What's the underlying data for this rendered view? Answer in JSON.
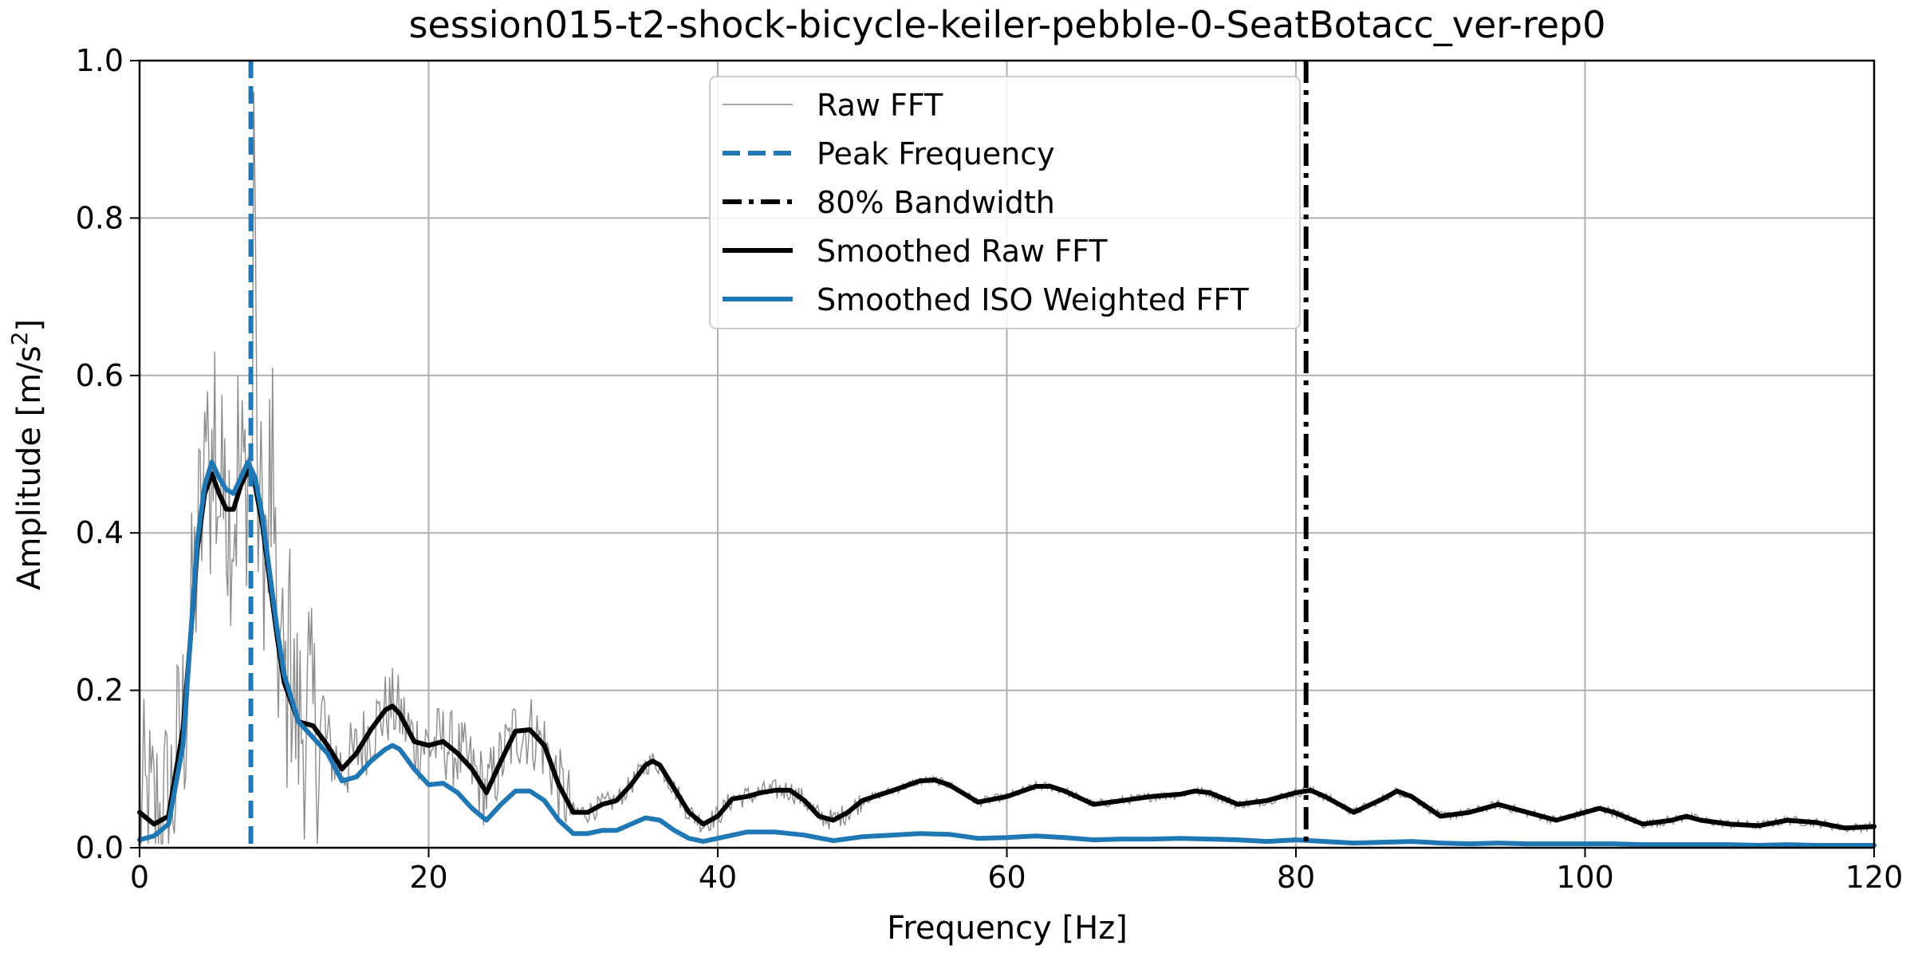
{
  "chart_data": {
    "type": "line",
    "title": "session015-t2-shock-bicycle-keiler-pebble-0-SeatBotacc_ver-rep0",
    "xlabel": "Frequency [Hz]",
    "ylabel_main": "Amplitude [m/s",
    "ylabel_sup": "2",
    "ylabel_close": "]",
    "xlim": [
      0,
      120
    ],
    "ylim": [
      0,
      1.0
    ],
    "x_ticks": [
      0,
      20,
      40,
      60,
      80,
      100,
      120
    ],
    "x_tick_labels": [
      "0",
      "20",
      "40",
      "60",
      "80",
      "100",
      "120"
    ],
    "y_ticks": [
      0,
      0.2,
      0.4,
      0.6,
      0.8,
      1.0
    ],
    "y_tick_labels": [
      "0.0",
      "0.2",
      "0.4",
      "0.6",
      "0.8",
      "1.0"
    ],
    "grid": true,
    "legend_position": "top-center",
    "peak_frequency": 7.7,
    "bandwidth_80": 80.7,
    "colors": {
      "raw": "#8c8c8c",
      "peak": "#1f77b4",
      "bandwidth": "#000000",
      "smooth_raw": "#000000",
      "smooth_iso": "#1f77b4"
    },
    "legend": [
      {
        "key": "raw",
        "label": "Raw FFT"
      },
      {
        "key": "peak",
        "label": "Peak Frequency"
      },
      {
        "key": "bandwidth",
        "label": "80% Bandwidth"
      },
      {
        "key": "smooth_raw",
        "label": "Smoothed Raw FFT"
      },
      {
        "key": "smooth_iso",
        "label": "Smoothed ISO Weighted FFT"
      }
    ],
    "series": [
      {
        "key": "smooth_raw",
        "x": [
          0,
          1,
          2,
          3,
          3.5,
          4,
          4.5,
          5,
          5.5,
          6,
          6.5,
          7,
          7.5,
          8,
          8.5,
          9,
          9.5,
          10,
          11,
          12,
          13,
          14,
          15,
          16,
          17,
          17.5,
          18,
          19,
          20,
          21,
          22,
          23,
          24,
          25,
          26,
          27,
          28,
          29,
          30,
          31,
          32,
          33,
          34,
          35,
          35.5,
          36,
          37,
          38,
          39,
          40,
          41,
          42,
          43,
          44,
          45,
          46,
          47,
          48,
          49,
          50,
          52,
          54,
          55,
          56,
          58,
          60,
          62,
          63,
          64,
          66,
          68,
          70,
          72,
          73,
          74,
          76,
          78,
          80,
          81,
          82,
          84,
          86,
          87,
          88,
          90,
          92,
          94,
          96,
          98,
          100,
          101,
          102,
          104,
          106,
          107,
          108,
          110,
          112,
          114,
          116,
          118,
          120
        ],
        "y": [
          0.045,
          0.03,
          0.04,
          0.15,
          0.26,
          0.38,
          0.45,
          0.475,
          0.45,
          0.43,
          0.43,
          0.46,
          0.48,
          0.46,
          0.41,
          0.34,
          0.27,
          0.21,
          0.16,
          0.155,
          0.13,
          0.1,
          0.12,
          0.15,
          0.175,
          0.18,
          0.17,
          0.135,
          0.13,
          0.135,
          0.12,
          0.1,
          0.07,
          0.11,
          0.148,
          0.15,
          0.13,
          0.08,
          0.045,
          0.045,
          0.055,
          0.06,
          0.08,
          0.105,
          0.11,
          0.105,
          0.075,
          0.045,
          0.03,
          0.04,
          0.062,
          0.065,
          0.07,
          0.073,
          0.073,
          0.06,
          0.04,
          0.035,
          0.045,
          0.06,
          0.072,
          0.085,
          0.086,
          0.08,
          0.058,
          0.065,
          0.078,
          0.078,
          0.072,
          0.055,
          0.06,
          0.065,
          0.068,
          0.072,
          0.07,
          0.055,
          0.06,
          0.07,
          0.073,
          0.065,
          0.045,
          0.062,
          0.072,
          0.065,
          0.04,
          0.045,
          0.055,
          0.045,
          0.035,
          0.045,
          0.05,
          0.045,
          0.03,
          0.035,
          0.04,
          0.035,
          0.03,
          0.028,
          0.035,
          0.032,
          0.025,
          0.027
        ]
      },
      {
        "key": "smooth_iso",
        "x": [
          0,
          1,
          2,
          3,
          3.5,
          4,
          4.5,
          5,
          5.5,
          6,
          6.5,
          7,
          7.5,
          8,
          8.5,
          9,
          9.5,
          10,
          11,
          12,
          13,
          14,
          15,
          16,
          17,
          17.5,
          18,
          19,
          20,
          21,
          22,
          23,
          24,
          25,
          26,
          27,
          28,
          29,
          30,
          31,
          32,
          33,
          34,
          35,
          36,
          37,
          38,
          39,
          40,
          42,
          44,
          46,
          48,
          50,
          52,
          54,
          56,
          58,
          60,
          62,
          64,
          66,
          68,
          70,
          72,
          74,
          76,
          78,
          80,
          82,
          84,
          86,
          88,
          90,
          92,
          94,
          96,
          98,
          100,
          102,
          104,
          106,
          108,
          110,
          112,
          114,
          116,
          118,
          120
        ],
        "y": [
          0.01,
          0.015,
          0.03,
          0.13,
          0.26,
          0.39,
          0.46,
          0.49,
          0.47,
          0.455,
          0.45,
          0.47,
          0.49,
          0.47,
          0.42,
          0.35,
          0.28,
          0.22,
          0.16,
          0.14,
          0.12,
          0.085,
          0.09,
          0.11,
          0.125,
          0.13,
          0.125,
          0.1,
          0.08,
          0.082,
          0.07,
          0.05,
          0.035,
          0.055,
          0.072,
          0.072,
          0.06,
          0.035,
          0.018,
          0.018,
          0.022,
          0.022,
          0.03,
          0.038,
          0.035,
          0.022,
          0.012,
          0.008,
          0.012,
          0.02,
          0.02,
          0.016,
          0.009,
          0.014,
          0.016,
          0.018,
          0.017,
          0.012,
          0.013,
          0.015,
          0.013,
          0.01,
          0.011,
          0.011,
          0.012,
          0.011,
          0.01,
          0.008,
          0.01,
          0.008,
          0.006,
          0.007,
          0.008,
          0.006,
          0.005,
          0.006,
          0.005,
          0.005,
          0.005,
          0.005,
          0.004,
          0.004,
          0.004,
          0.004,
          0.003,
          0.004,
          0.003,
          0.003,
          0.003
        ]
      }
    ]
  }
}
